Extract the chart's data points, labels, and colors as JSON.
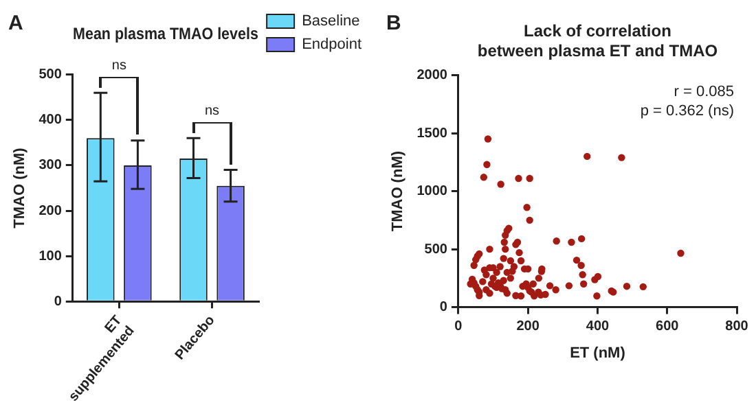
{
  "chart_data": [
    {
      "type": "bar",
      "title": "Mean plasma TMAO levels",
      "ylabel": "TMAO (nM)",
      "categories": [
        "ET supplemented",
        "Placebo"
      ],
      "series": [
        {
          "name": "Baseline",
          "color": "#6cd8f7",
          "values": [
            360,
            315
          ],
          "errors": [
            [
              265,
              460
            ],
            [
              272,
              360
            ]
          ]
        },
        {
          "name": "Endpoint",
          "color": "#7b7cf6",
          "values": [
            300,
            255
          ],
          "errors": [
            [
              248,
              355
            ],
            [
              220,
              290
            ]
          ]
        }
      ],
      "ylim": [
        0,
        500
      ],
      "yticks": [
        0,
        100,
        200,
        300,
        400,
        500
      ],
      "grid": false,
      "legend": "top right",
      "annotations": [
        "A",
        "ns",
        "ns"
      ]
    },
    {
      "type": "scatter",
      "title": "Lack of correlation between plasma ET and TMAO",
      "xlabel": "ET (nM)",
      "ylabel": "TMAO (nM)",
      "marker": "circle",
      "series": [
        {
          "color": "#a31b12",
          "x": [
            85,
            82,
            73,
            122,
            173,
            205,
            197,
            205,
            370,
            469,
            639,
            282,
            325,
            354,
            340,
            353,
            357,
            360,
            318,
            392,
            401,
            398,
            440,
            445,
            484,
            531,
            280,
            263,
            239,
            231,
            237,
            218,
            180,
            90,
            40,
            45,
            50,
            55,
            60,
            45,
            50,
            55,
            60,
            35,
            70,
            80,
            90,
            95,
            100,
            105,
            110,
            115,
            120,
            125,
            130,
            135,
            140,
            110,
            100,
            120,
            130,
            135,
            132,
            135,
            140,
            145,
            150,
            155,
            160,
            165,
            170,
            175,
            180,
            190,
            195,
            200,
            210,
            215,
            165,
            90,
            75,
            80,
            60,
            140,
            150,
            185,
            200,
            240,
            230,
            205,
            250
          ],
          "values": [
            1450,
            1230,
            1120,
            1060,
            1110,
            1110,
            860,
            750,
            1300,
            1290,
            465,
            570,
            560,
            590,
            405,
            360,
            280,
            200,
            185,
            237,
            264,
            97,
            140,
            130,
            180,
            176,
            150,
            185,
            308,
            250,
            105,
            97,
            97,
            500,
            240,
            210,
            180,
            150,
            130,
            360,
            410,
            440,
            460,
            200,
            220,
            150,
            120,
            200,
            250,
            180,
            170,
            210,
            190,
            160,
            230,
            150,
            120,
            300,
            340,
            350,
            420,
            500,
            560,
            620,
            660,
            680,
            250,
            310,
            350,
            540,
            560,
            470,
            400,
            330,
            200,
            170,
            130,
            200,
            100,
            340,
            320,
            280,
            100,
            300,
            400,
            180,
            330,
            330,
            130,
            140,
            110
          ]
        }
      ],
      "xlim": [
        0,
        800
      ],
      "xticks": [
        0,
        200,
        400,
        600,
        800
      ],
      "ylim": [
        0,
        2000
      ],
      "yticks": [
        0,
        500,
        1000,
        1500,
        2000
      ],
      "grid": false,
      "annotations": [
        "B",
        "r = 0.085",
        "p = 0.362 (ns)"
      ]
    }
  ]
}
